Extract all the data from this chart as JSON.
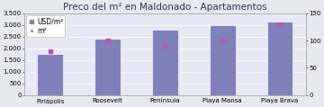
{
  "title": "Preco del m² en Maldonado - Apartamentos",
  "categories": [
    "Piriápolis",
    "Roosevelt",
    "Península",
    "Playa Mansa",
    "Playa Brava"
  ],
  "bar_values": [
    1750,
    2420,
    2820,
    3000,
    3150
  ],
  "dot_values": [
    80,
    100,
    90,
    100,
    130
  ],
  "bar_color": "#8080bb",
  "dot_color": "#bb55aa",
  "ylim_left": [
    0,
    3500
  ],
  "ylim_right": [
    0,
    150
  ],
  "yticks_left": [
    0,
    500,
    1000,
    1500,
    2000,
    2500,
    3000,
    3500
  ],
  "yticks_left_labels": [
    "0",
    "500",
    "1.000",
    "1.500",
    "2.000",
    "2.500",
    "3.000",
    "3.500"
  ],
  "yticks_right": [
    0,
    50,
    100,
    150
  ],
  "legend_bar_label": "USD/m²",
  "legend_dot_label": "m²",
  "fig_bg_color": "#e8e8f0",
  "plot_bg_color": "#e8e8f4",
  "title_fontsize": 7.5,
  "label_fontsize": 5.5,
  "tick_fontsize": 5.0
}
